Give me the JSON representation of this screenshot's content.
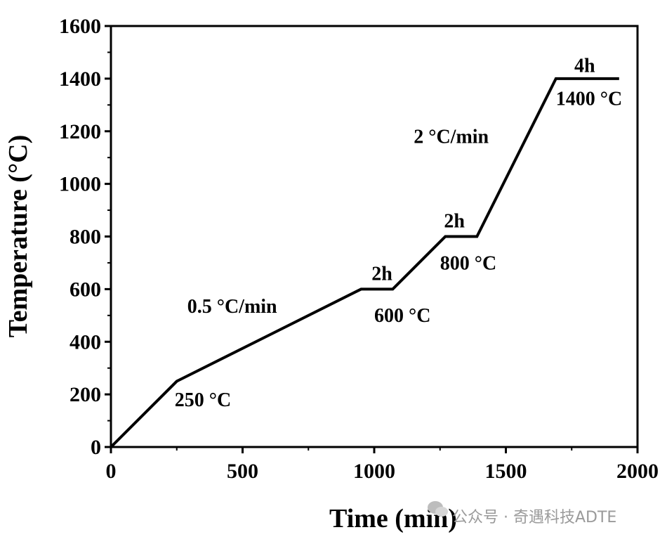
{
  "chart_data": {
    "type": "line",
    "xlabel": "Time (min)",
    "ylabel": "Temperature (°C)",
    "xlim": [
      0,
      2000
    ],
    "ylim": [
      0,
      1600
    ],
    "xticks": [
      "0",
      "500",
      "1000",
      "1500",
      "2000"
    ],
    "yticks": [
      "0",
      "200",
      "400",
      "600",
      "800",
      "1000",
      "1200",
      "1400",
      "1600"
    ],
    "grid": false,
    "series": [
      {
        "x": [
          0,
          250,
          950,
          1070,
          1270,
          1390,
          1690,
          1930
        ],
        "y": [
          0,
          250,
          600,
          600,
          800,
          800,
          1400,
          1400
        ]
      }
    ],
    "annotations": [
      {
        "text": "250 °C",
        "x": 242,
        "y": 155
      },
      {
        "text": "0.5 °C/min",
        "x": 290,
        "y": 510
      },
      {
        "text": "2h",
        "x": 990,
        "y": 635
      },
      {
        "text": "600 °C",
        "x": 1000,
        "y": 475
      },
      {
        "text": "2h",
        "x": 1265,
        "y": 835
      },
      {
        "text": "800 °C",
        "x": 1250,
        "y": 675
      },
      {
        "text": "2 °C/min",
        "x": 1150,
        "y": 1155
      },
      {
        "text": "4h",
        "x": 1760,
        "y": 1425
      },
      {
        "text": "1400 °C",
        "x": 1690,
        "y": 1300
      }
    ]
  },
  "watermark": {
    "text": "公众号 · 奇遇科技ADTE",
    "icon": "wechat-icon"
  }
}
